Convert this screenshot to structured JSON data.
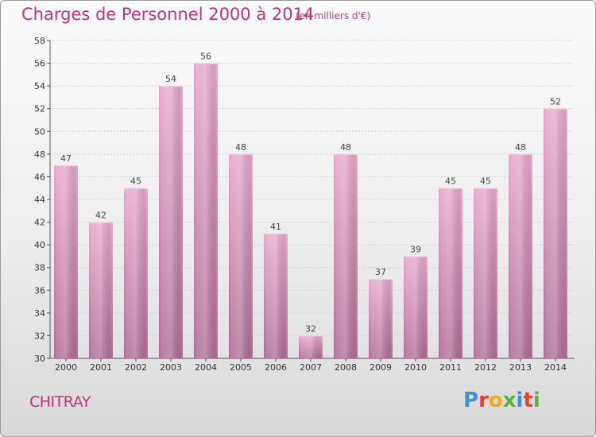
{
  "header": {
    "title": "Charges de Personnel 2000 à 2014",
    "subtitle": "(en milliers d'€)"
  },
  "footer": {
    "commune": "CHITRAY",
    "logo_letters": [
      "P",
      "r",
      "o",
      "x",
      "i",
      "t",
      "i"
    ],
    "logo_colors": [
      "#3d8fd6",
      "#e8402a",
      "#f0a81c",
      "#5bb339",
      "#3d8fd6",
      "#e8402a",
      "#5bb339"
    ]
  },
  "chart_data": {
    "type": "bar",
    "title": "Charges de Personnel 2000 à 2014",
    "subtitle": "(en milliers d'€)",
    "categories": [
      "2000",
      "2001",
      "2002",
      "2003",
      "2004",
      "2005",
      "2006",
      "2007",
      "2008",
      "2009",
      "2010",
      "2011",
      "2012",
      "2013",
      "2014"
    ],
    "values": [
      47,
      42,
      45,
      54,
      56,
      48,
      41,
      32,
      48,
      37,
      39,
      45,
      45,
      48,
      52
    ],
    "ylim": [
      30,
      58
    ],
    "yticks": [
      30,
      32,
      34,
      36,
      38,
      40,
      42,
      44,
      46,
      48,
      50,
      52,
      54,
      56,
      58
    ],
    "grid": true,
    "legend": "none",
    "bar_color": "#d98fb8",
    "bar_color_dark": "#b86e98"
  }
}
